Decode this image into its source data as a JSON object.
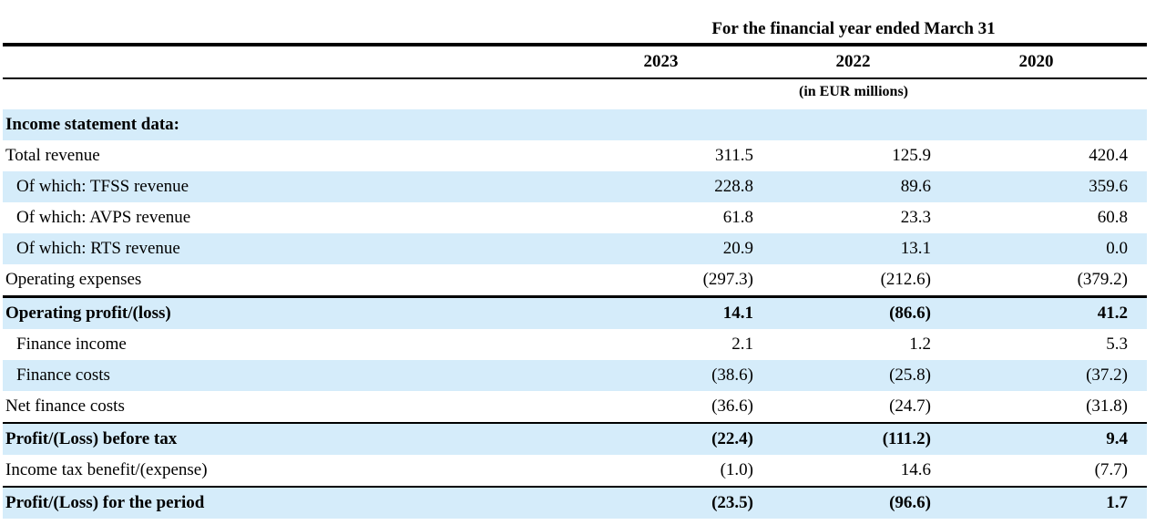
{
  "header": {
    "title": "For the financial year ended March 31",
    "years": [
      "2023",
      "2022",
      "2020"
    ],
    "unit": "(in EUR millions)"
  },
  "rows": [
    {
      "label": "Income statement data:",
      "values": [
        "",
        "",
        ""
      ]
    },
    {
      "label": "Total revenue",
      "values": [
        "311.5",
        "125.9",
        "420.4"
      ]
    },
    {
      "label": "Of which: TFSS revenue",
      "values": [
        "228.8",
        "89.6",
        "359.6"
      ]
    },
    {
      "label": "Of which: AVPS revenue",
      "values": [
        "61.8",
        "23.3",
        "60.8"
      ]
    },
    {
      "label": "Of which: RTS revenue",
      "values": [
        "20.9",
        "13.1",
        "0.0"
      ]
    },
    {
      "label": "Operating expenses",
      "values": [
        "(297.3)",
        "(212.6)",
        "(379.2)"
      ]
    },
    {
      "label": "Operating profit/(loss)",
      "values": [
        "14.1",
        "(86.6)",
        "41.2"
      ]
    },
    {
      "label": "Finance income",
      "values": [
        "2.1",
        "1.2",
        "5.3"
      ]
    },
    {
      "label": "Finance costs",
      "values": [
        "(38.6)",
        "(25.8)",
        "(37.2)"
      ]
    },
    {
      "label": "Net finance costs",
      "values": [
        "(36.6)",
        "(24.7)",
        "(31.8)"
      ]
    },
    {
      "label": "Profit/(Loss) before tax",
      "values": [
        "(22.4)",
        "(111.2)",
        "9.4"
      ]
    },
    {
      "label": "Income tax benefit/(expense)",
      "values": [
        "(1.0)",
        "14.6",
        "(7.7)"
      ]
    },
    {
      "label": "Profit/(Loss) for the period",
      "values": [
        "(23.5)",
        "(96.6)",
        "1.7"
      ]
    }
  ],
  "colors": {
    "row_shade": "#d5ecfa",
    "rule": "#000000"
  }
}
